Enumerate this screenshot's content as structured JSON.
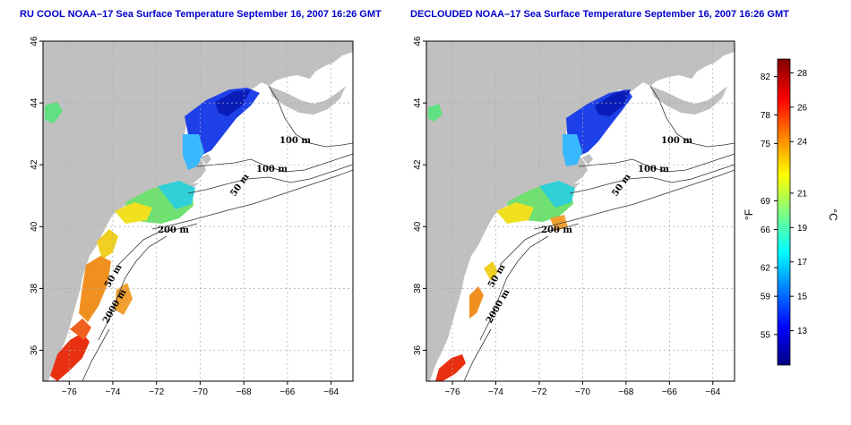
{
  "panels": [
    {
      "title": "RU COOL NOAA–17 Sea Surface Temperature September 16, 2007 16:26 GMT",
      "contour_labels": [
        "100 m",
        "100 m",
        "50 m",
        "200 m",
        "50 m",
        "2000 m"
      ]
    },
    {
      "title": "DECLOUDED NOAA–17 Sea Surface Temperature September 16, 2007 16:26 GMT",
      "contour_labels": [
        "100 m",
        "100 m",
        "50 m",
        "200 m",
        "50 m",
        "2000 m"
      ]
    }
  ],
  "axes": {
    "x_ticks": [
      "−76",
      "−74",
      "−72",
      "−70",
      "−68",
      "−66",
      "−64"
    ],
    "y_ticks": [
      "36",
      "38",
      "40",
      "42",
      "44",
      "46"
    ],
    "lon_range": [
      -77.2,
      -63.0
    ],
    "lat_range": [
      35.0,
      46.0
    ]
  },
  "colorbar": {
    "fahrenheit_unit": "°F",
    "celsius_unit": "°C",
    "fahrenheit_ticks": [
      "82",
      "78",
      "75",
      "69",
      "66",
      "62",
      "59",
      "55"
    ],
    "celsius_ticks": [
      "28",
      "26",
      "24",
      "21",
      "19",
      "17",
      "15",
      "13"
    ],
    "fahrenheit_values": [
      82,
      78,
      75,
      69,
      66,
      62,
      59,
      55
    ],
    "celsius_values": [
      28,
      26,
      24,
      21,
      19,
      17,
      15,
      13
    ],
    "range_celsius": [
      11,
      28.8
    ],
    "colors": [
      "#000080",
      "#0000ff",
      "#0080ff",
      "#00ffff",
      "#80ff80",
      "#ffff00",
      "#ff8000",
      "#ff0000",
      "#800000"
    ]
  },
  "colors": {
    "land": "#c0c0c0",
    "title": "#0000cc"
  }
}
